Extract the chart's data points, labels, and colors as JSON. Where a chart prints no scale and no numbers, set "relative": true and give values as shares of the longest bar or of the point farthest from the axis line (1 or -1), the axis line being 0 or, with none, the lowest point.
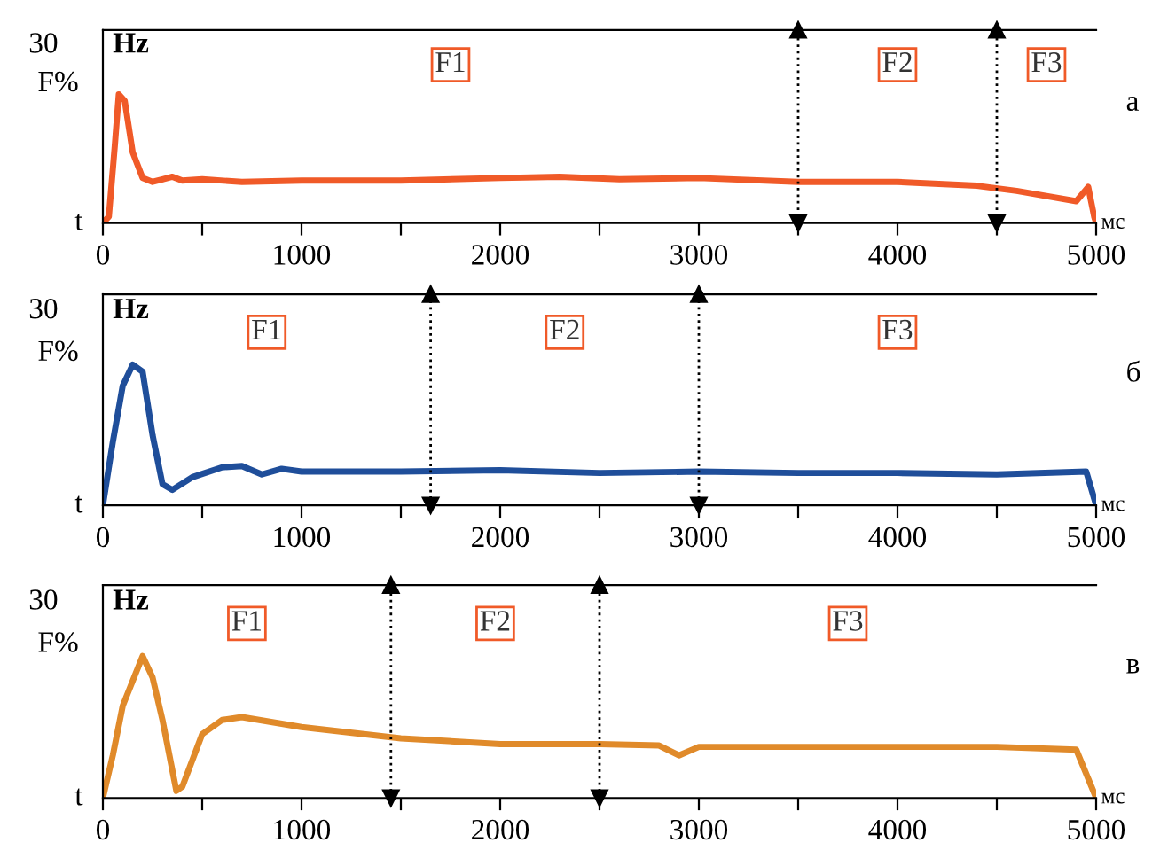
{
  "chart_data": [
    {
      "type": "line",
      "relative": true,
      "xlabel": "мс",
      "ylabel": "F%",
      "xlim": [
        0,
        5000
      ],
      "xticks": [
        0,
        {
          "value": 500,
          "label": null
        },
        1000,
        {
          "value": 1500,
          "label": null
        },
        2000,
        {
          "value": 2500,
          "label": null
        },
        3000,
        {
          "value": 3500,
          "label": null
        },
        4000,
        {
          "value": 4500,
          "label": null
        },
        5000
      ],
      "tick_labels": "x",
      "grid": false,
      "marker": "none",
      "line_style": "solid",
      "series": [
        {
          "color": "#f05a28",
          "x": [
            0,
            30,
            60,
            80,
            110,
            150,
            200,
            250,
            300,
            350,
            400,
            500,
            700,
            1000,
            1500,
            2000,
            2300,
            2600,
            3000,
            3500,
            4000,
            4400,
            4600,
            4900,
            4960,
            4990,
            5000
          ],
          "values": [
            0,
            0.05,
            0.6,
            1.0,
            0.95,
            0.55,
            0.35,
            0.32,
            0.34,
            0.36,
            0.33,
            0.34,
            0.32,
            0.33,
            0.33,
            0.35,
            0.36,
            0.34,
            0.35,
            0.32,
            0.32,
            0.29,
            0.25,
            0.17,
            0.28,
            0.05,
            0
          ]
        }
      ],
      "ref_lines": [
        {
          "axis": "x",
          "value": 3500,
          "color": "#000000",
          "line_style": "dotted"
        },
        {
          "axis": "x",
          "value": 4500,
          "color": "#000000",
          "line_style": "dotted"
        }
      ],
      "annotations": [
        "30",
        "Hz",
        "t",
        "а",
        "F1",
        "F2",
        "F3"
      ]
    },
    {
      "type": "line",
      "relative": true,
      "xlabel": "мс",
      "ylabel": "F%",
      "xlim": [
        0,
        5000
      ],
      "xticks": [
        0,
        {
          "value": 500,
          "label": null
        },
        1000,
        {
          "value": 1500,
          "label": null
        },
        2000,
        {
          "value": 2500,
          "label": null
        },
        3000,
        {
          "value": 3500,
          "label": null
        },
        4000,
        {
          "value": 4500,
          "label": null
        },
        5000
      ],
      "tick_labels": "x",
      "grid": false,
      "marker": "none",
      "line_style": "solid",
      "series": [
        {
          "color": "#1f4e9a",
          "x": [
            0,
            50,
            100,
            150,
            200,
            250,
            300,
            350,
            450,
            600,
            700,
            800,
            900,
            1000,
            1500,
            2000,
            2500,
            3000,
            3500,
            4000,
            4500,
            4950,
            5000
          ],
          "values": [
            0,
            0.45,
            0.85,
            1.0,
            0.95,
            0.5,
            0.15,
            0.11,
            0.2,
            0.27,
            0.28,
            0.22,
            0.26,
            0.24,
            0.24,
            0.25,
            0.23,
            0.24,
            0.23,
            0.23,
            0.22,
            0.24,
            0
          ]
        }
      ],
      "ref_lines": [
        {
          "axis": "x",
          "value": 1650,
          "color": "#000000",
          "line_style": "dotted"
        },
        {
          "axis": "x",
          "value": 3000,
          "color": "#000000",
          "line_style": "dotted"
        }
      ],
      "annotations": [
        "30",
        "Hz",
        "t",
        "б",
        "F1",
        "F2",
        "F3"
      ]
    },
    {
      "type": "line",
      "relative": true,
      "xlabel": "мс",
      "ylabel": "F%",
      "xlim": [
        0,
        5000
      ],
      "xticks": [
        0,
        {
          "value": 500,
          "label": null
        },
        1000,
        {
          "value": 1500,
          "label": null
        },
        2000,
        {
          "value": 2500,
          "label": null
        },
        3000,
        {
          "value": 3500,
          "label": null
        },
        4000,
        {
          "value": 4500,
          "label": null
        },
        5000
      ],
      "tick_labels": "x",
      "grid": false,
      "marker": "none",
      "line_style": "solid",
      "series": [
        {
          "color": "#e08a2a",
          "x": [
            0,
            50,
            100,
            200,
            250,
            300,
            370,
            400,
            500,
            600,
            700,
            1000,
            1500,
            2000,
            2500,
            2800,
            2900,
            3000,
            3500,
            4000,
            4500,
            4900,
            5000
          ],
          "values": [
            0,
            0.3,
            0.65,
            1.0,
            0.85,
            0.55,
            0.05,
            0.08,
            0.45,
            0.55,
            0.57,
            0.5,
            0.42,
            0.38,
            0.38,
            0.37,
            0.3,
            0.36,
            0.36,
            0.36,
            0.36,
            0.34,
            0
          ]
        }
      ],
      "ref_lines": [
        {
          "axis": "x",
          "value": 1450,
          "color": "#000000",
          "line_style": "dotted"
        },
        {
          "axis": "x",
          "value": 2500,
          "color": "#000000",
          "line_style": "dotted"
        }
      ],
      "annotations": [
        "30",
        "Hz",
        "t",
        "в",
        "F1",
        "F2",
        "F3"
      ]
    }
  ]
}
